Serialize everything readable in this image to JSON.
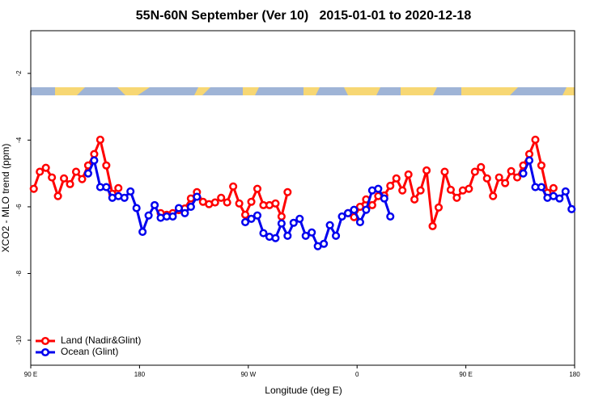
{
  "chart_data": {
    "type": "line",
    "title": "55N-60N September (Ver 10)   2015-01-01 to 2020-12-18",
    "xlabel": "Longitude (deg E)",
    "ylabel": "XCO2 - MLO trend (ppm)",
    "xlim": [
      90,
      540
    ],
    "xticks": [
      {
        "value": 90,
        "label": "90 E"
      },
      {
        "value": 180,
        "label": "180"
      },
      {
        "value": 270,
        "label": "90 W"
      },
      {
        "value": 360,
        "label": "0"
      },
      {
        "value": 450,
        "label": "90 E"
      },
      {
        "value": 540,
        "label": "180"
      }
    ],
    "ylim": [
      -10.75,
      -0.72
    ],
    "yticks": [
      -10,
      -8,
      -6,
      -4,
      -2
    ],
    "legend": "lower left",
    "series": [
      {
        "name": "Land (Nadir&Glint)",
        "color": "#ff0000",
        "x": [
          92.5,
          97.5,
          102.5,
          107.5,
          112.5,
          117.5,
          122.5,
          127.5,
          132.5,
          137.5,
          142.5,
          147.5,
          152.5,
          157.5,
          162.5,
          167.5,
          197.5,
          202.5,
          207.5,
          212.5,
          217.5,
          222.5,
          227.5,
          232.5,
          237.5,
          242.5,
          247.5,
          252.5,
          257.5,
          262.5,
          267.5,
          272.5,
          277.5,
          282.5,
          287.5,
          292.5,
          297.5,
          302.5,
          307.5,
          352.5,
          357.5,
          362.5,
          367.5,
          372.5,
          377.5,
          382.5,
          387.5,
          392.5,
          397.5,
          402.5,
          407.5,
          412.5,
          417.5,
          422.5,
          427.5,
          432.5,
          437.5,
          442.5,
          447.5,
          452.5,
          457.5,
          462.5,
          467.5,
          472.5,
          477.5,
          482.5,
          487.5,
          492.5,
          497.5,
          502.5,
          507.5,
          512.5,
          517.5,
          522.5
        ],
        "values": [
          -5.46,
          -4.95,
          -4.83,
          -5.12,
          -5.68,
          -5.15,
          -5.32,
          -4.95,
          -5.17,
          -4.76,
          -4.42,
          -3.99,
          -4.76,
          -5.61,
          -5.44,
          null,
          -6.19,
          -6.24,
          -6.19,
          -6.1,
          -6.05,
          -5.75,
          -5.56,
          -5.85,
          -5.92,
          -5.87,
          -5.73,
          -5.87,
          -5.39,
          -5.9,
          -6.24,
          -5.85,
          -5.46,
          -5.95,
          -5.95,
          -5.9,
          -6.29,
          -5.56,
          null,
          -6.19,
          -6.31,
          -6.0,
          -5.78,
          -5.95,
          -5.68,
          -5.66,
          -5.37,
          -5.15,
          -5.51,
          -5.03,
          -5.78,
          -5.51,
          -4.91,
          -6.58,
          -6.02,
          -4.95,
          -5.49,
          -5.73,
          -5.51,
          -5.46,
          -4.95,
          -4.81,
          -5.15,
          -5.68,
          -5.12,
          -5.29,
          -4.93,
          -5.12,
          -4.76,
          -4.42,
          -3.99,
          -4.76,
          -5.58,
          -5.44
        ]
      },
      {
        "name": "Ocean (Glint)",
        "color": "#0000ee",
        "x": [
          137.5,
          142.5,
          147.5,
          152.5,
          157.5,
          162.5,
          167.5,
          172.5,
          177.5,
          182.5,
          187.5,
          192.5,
          197.5,
          202.5,
          207.5,
          212.5,
          217.5,
          222.5,
          227.5,
          232.5,
          267.5,
          272.5,
          277.5,
          282.5,
          287.5,
          292.5,
          297.5,
          302.5,
          307.5,
          312.5,
          317.5,
          322.5,
          327.5,
          332.5,
          337.5,
          342.5,
          347.5,
          352.5,
          357.5,
          362.5,
          367.5,
          372.5,
          377.5,
          382.5,
          387.5,
          392.5,
          497.5,
          502.5,
          507.5,
          512.5,
          517.5,
          522.5,
          527.5,
          532.5,
          537.5
        ],
        "values": [
          -5.0,
          -4.61,
          -5.41,
          -5.41,
          -5.73,
          -5.68,
          -5.73,
          -5.54,
          -6.04,
          -6.75,
          -6.26,
          -5.95,
          -6.33,
          -6.29,
          -6.29,
          -6.04,
          -6.19,
          -6.0,
          -5.7,
          null,
          -6.46,
          -6.36,
          -6.26,
          -6.79,
          -6.9,
          -6.94,
          -6.5,
          -6.87,
          -6.48,
          -6.36,
          -6.87,
          -6.77,
          -7.18,
          -7.11,
          -6.55,
          -6.87,
          -6.29,
          -6.19,
          -6.09,
          -6.46,
          -6.09,
          -5.51,
          -5.46,
          -5.75,
          -6.29,
          null,
          -5.0,
          -4.61,
          -5.41,
          -5.41,
          -5.73,
          -5.68,
          -5.75,
          -5.54,
          -6.07
        ]
      }
    ]
  }
}
